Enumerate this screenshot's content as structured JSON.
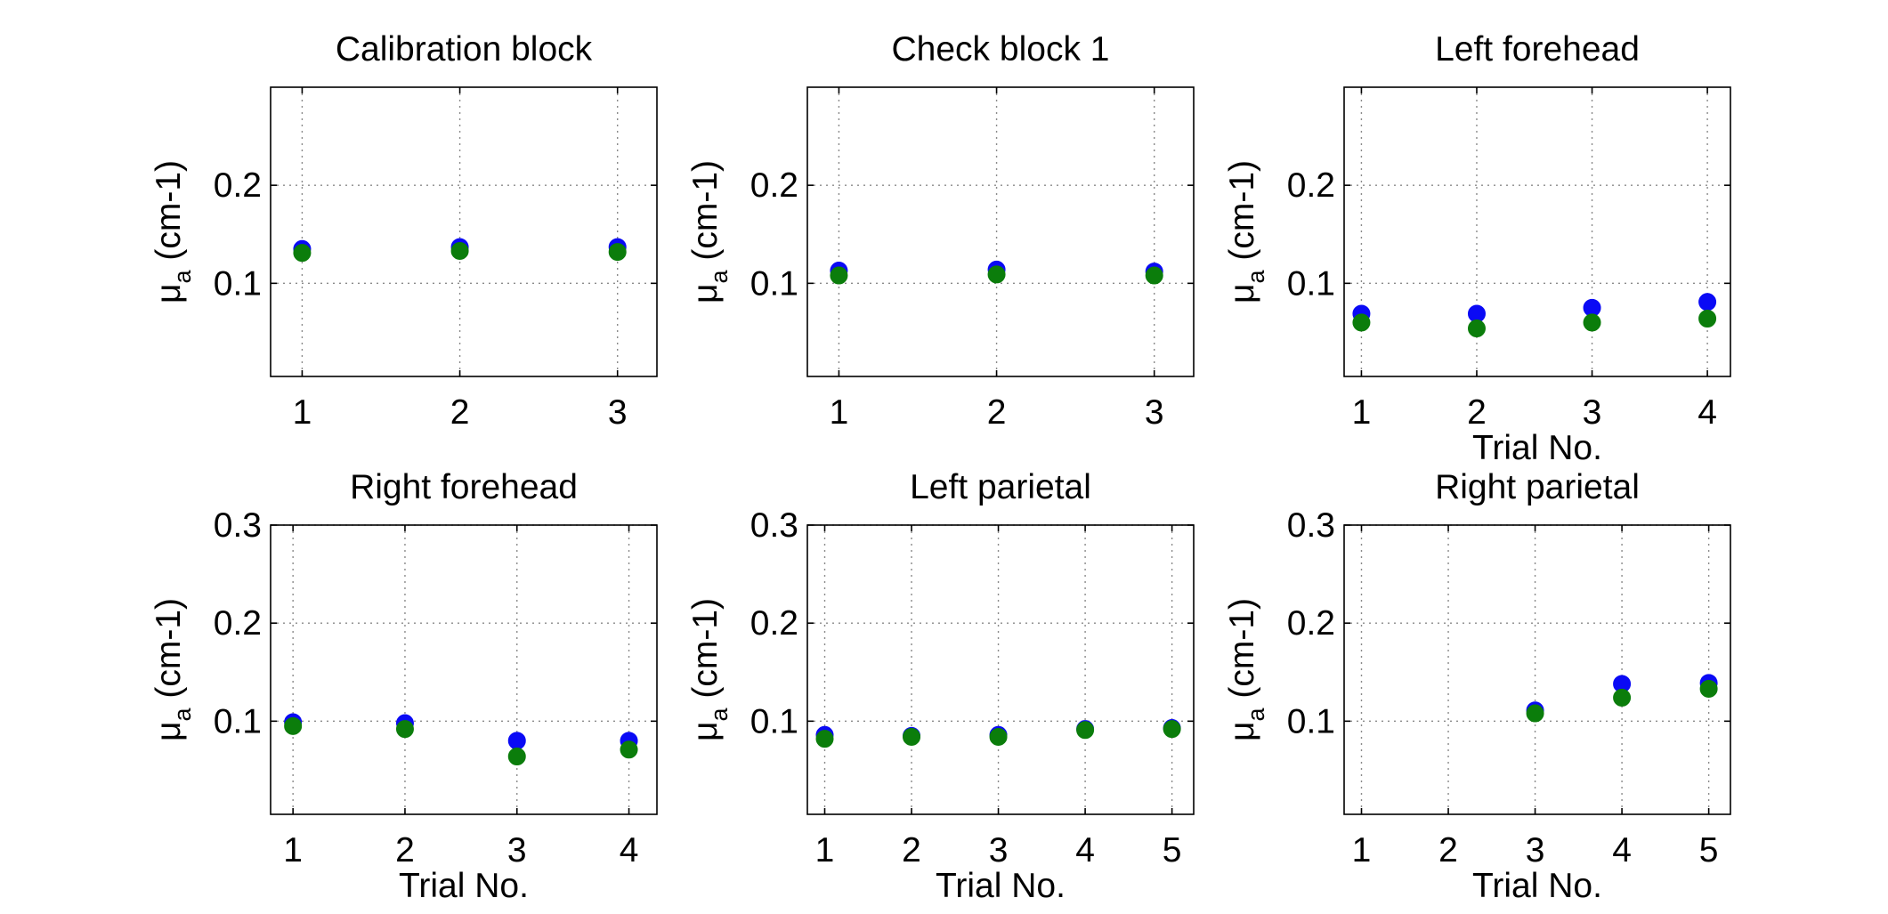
{
  "colors": {
    "series_1": "#0a0af5",
    "series_2": "#0b7d0b",
    "axes": "#000000",
    "grid": "#8a8a8a"
  },
  "chart_data": [
    {
      "type": "scatter",
      "title": "Calibration block",
      "xlabel": "",
      "ylabel": "μa (cm-1)",
      "xlim": [
        0.8,
        3.25
      ],
      "ylim": [
        0.005,
        0.3
      ],
      "xticks": [
        1,
        2,
        3
      ],
      "yticks": [
        0.1,
        0.2
      ],
      "grid": true,
      "x": [
        1,
        2,
        3
      ],
      "series": [
        {
          "color": "#0a0af5",
          "values": [
            0.135,
            0.137,
            0.137
          ]
        },
        {
          "color": "#0b7d0b",
          "values": [
            0.131,
            0.133,
            0.132
          ]
        }
      ]
    },
    {
      "type": "scatter",
      "title": "Check block 1",
      "xlabel": "",
      "ylabel": "μa (cm-1)",
      "xlim": [
        0.8,
        3.25
      ],
      "ylim": [
        0.005,
        0.3
      ],
      "xticks": [
        1,
        2,
        3
      ],
      "yticks": [
        0.1,
        0.2
      ],
      "grid": true,
      "x": [
        1,
        2,
        3
      ],
      "series": [
        {
          "color": "#0a0af5",
          "values": [
            0.113,
            0.114,
            0.112
          ]
        },
        {
          "color": "#0b7d0b",
          "values": [
            0.108,
            0.109,
            0.108
          ]
        }
      ]
    },
    {
      "type": "scatter",
      "title": "Left forehead",
      "xlabel": "Trial No.",
      "ylabel": "μa (cm-1)",
      "xlim": [
        0.85,
        4.2
      ],
      "ylim": [
        0.005,
        0.3
      ],
      "xticks": [
        1,
        2,
        3,
        4
      ],
      "yticks": [
        0.1,
        0.2
      ],
      "grid": true,
      "x": [
        1,
        2,
        3,
        4
      ],
      "series": [
        {
          "color": "#0a0af5",
          "values": [
            0.069,
            0.069,
            0.075,
            0.081
          ]
        },
        {
          "color": "#0b7d0b",
          "values": [
            0.06,
            0.054,
            0.06,
            0.064
          ]
        }
      ]
    },
    {
      "type": "scatter",
      "title": "Right forehead",
      "xlabel": "Trial No.",
      "ylabel": "μa (cm-1)",
      "xlim": [
        0.8,
        4.25
      ],
      "ylim": [
        0.005,
        0.3
      ],
      "xticks": [
        1,
        2,
        3,
        4
      ],
      "yticks": [
        0.1,
        0.2,
        0.3
      ],
      "grid": true,
      "x": [
        1,
        2,
        3,
        4
      ],
      "series": [
        {
          "color": "#0a0af5",
          "values": [
            0.099,
            0.098,
            0.08,
            0.08
          ]
        },
        {
          "color": "#0b7d0b",
          "values": [
            0.095,
            0.092,
            0.064,
            0.071
          ]
        }
      ]
    },
    {
      "type": "scatter",
      "title": "Left parietal",
      "xlabel": "Trial No.",
      "ylabel": "μa (cm-1)",
      "xlim": [
        0.8,
        5.25
      ],
      "ylim": [
        0.005,
        0.3
      ],
      "xticks": [
        1,
        2,
        3,
        4,
        5
      ],
      "yticks": [
        0.1,
        0.2,
        0.3
      ],
      "grid": true,
      "x": [
        1,
        2,
        3,
        4,
        5
      ],
      "series": [
        {
          "color": "#0a0af5",
          "values": [
            0.086,
            0.085,
            0.086,
            0.092,
            0.093
          ]
        },
        {
          "color": "#0b7d0b",
          "values": [
            0.082,
            0.084,
            0.084,
            0.091,
            0.092
          ]
        }
      ]
    },
    {
      "type": "scatter",
      "title": "Right parietal",
      "xlabel": "Trial No.",
      "ylabel": "μa (cm-1)",
      "xlim": [
        0.8,
        5.25
      ],
      "ylim": [
        0.005,
        0.3
      ],
      "xticks": [
        1,
        2,
        3,
        4,
        5
      ],
      "yticks": [
        0.1,
        0.2,
        0.3
      ],
      "grid": true,
      "x": [
        3,
        4,
        5
      ],
      "series": [
        {
          "color": "#0a0af5",
          "values": [
            0.111,
            0.138,
            0.139
          ]
        },
        {
          "color": "#0b7d0b",
          "values": [
            0.108,
            0.124,
            0.133
          ]
        }
      ]
    }
  ]
}
